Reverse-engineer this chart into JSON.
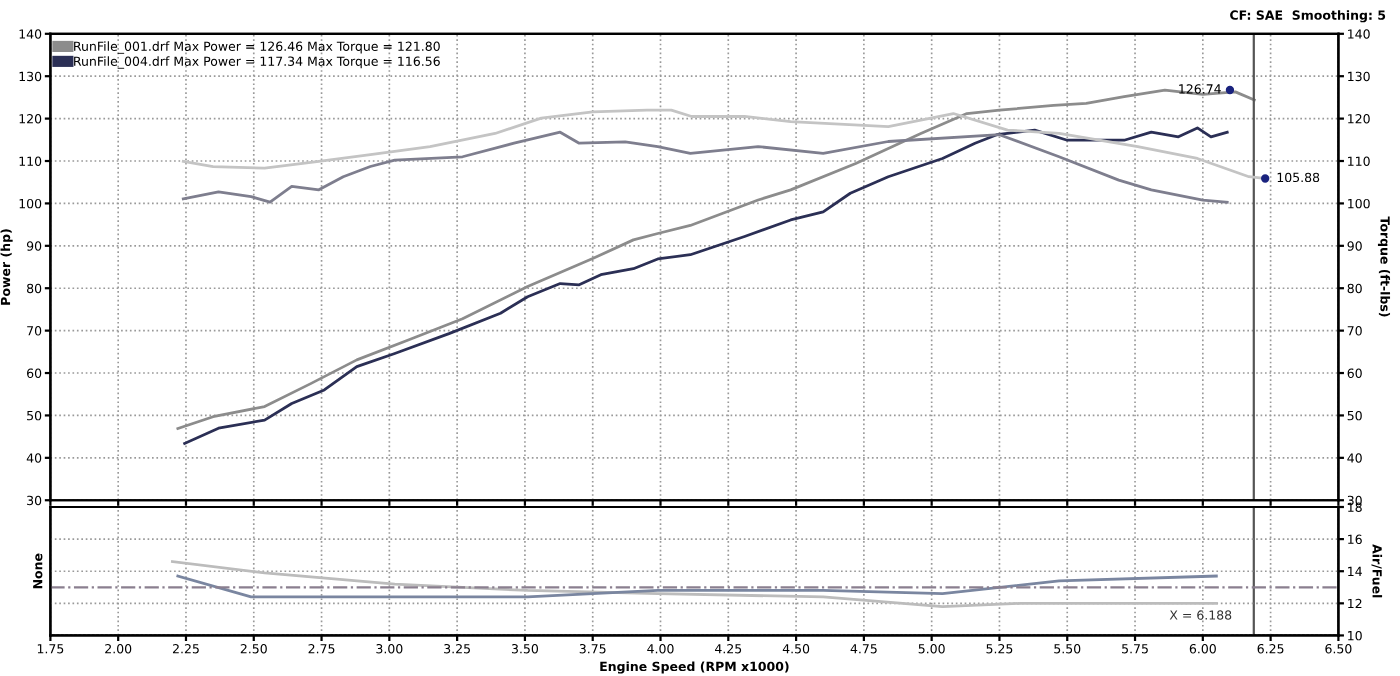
{
  "chart_data": [
    {
      "type": "line",
      "xlabel": null,
      "ylabel": "Power (hp)",
      "y2label": "Torque (ft-lbs)",
      "annotations": [
        "CF: SAE  Smoothing: 5",
        {
          "text": "126.74",
          "x": 6.1,
          "y": 126.74
        },
        {
          "text": "105.88",
          "x": 6.23,
          "y": 105.88
        }
      ],
      "xlim": [
        1.75,
        6.5
      ],
      "xticks": [
        1.75,
        2.0,
        2.25,
        2.5,
        2.75,
        3.0,
        3.25,
        3.5,
        3.75,
        4.0,
        4.25,
        4.5,
        4.75,
        5.0,
        5.25,
        5.5,
        5.75,
        6.0,
        6.25,
        6.5
      ],
      "ylim": [
        30,
        140
      ],
      "yticks": [
        30,
        40,
        50,
        60,
        70,
        80,
        90,
        100,
        110,
        120,
        130,
        140
      ],
      "y2lim": [
        30,
        140
      ],
      "y2ticks": [
        30,
        40,
        50,
        60,
        70,
        80,
        90,
        100,
        110,
        120,
        130,
        140
      ],
      "tick_labels": "y",
      "grid": true,
      "legend": "top left",
      "line_style": "solid",
      "ref_lines": [
        {
          "axis": "x",
          "value": 6.188,
          "color": "#555555"
        }
      ],
      "series": [
        {
          "name": "RunFile_001.drf Max Power = 126.46 Max Torque = 121.80",
          "color": "#8c8c8c",
          "x": [
            2.22,
            2.35,
            2.54,
            2.71,
            2.88,
            3.07,
            3.27,
            3.51,
            3.75,
            3.9,
            3.99,
            4.11,
            4.36,
            4.48,
            4.72,
            4.96,
            5.13,
            5.25,
            5.45,
            5.57,
            5.71,
            5.86,
            6.0,
            6.12,
            6.19
          ],
          "values": [
            46.9,
            49.7,
            52.1,
            57.5,
            63.1,
            67.8,
            72.8,
            80.4,
            87.0,
            91.4,
            92.9,
            94.8,
            100.8,
            103.2,
            109.4,
            116.5,
            121.2,
            122.0,
            123.1,
            123.6,
            125.2,
            126.7,
            125.7,
            126.3,
            124.4
          ]
        },
        {
          "name": "RunFile_004.drf Max Power = 117.34 Max Torque = 116.56",
          "color": "#2b2f55",
          "x": [
            2.245,
            2.37,
            2.54,
            2.64,
            2.76,
            2.88,
            3.02,
            3.22,
            3.41,
            3.51,
            3.63,
            3.7,
            3.78,
            3.9,
            3.99,
            4.11,
            4.31,
            4.48,
            4.6,
            4.7,
            4.84,
            5.04,
            5.16,
            5.24,
            5.38,
            5.5,
            5.71,
            5.81,
            5.91,
            5.98,
            6.03,
            6.09
          ],
          "values": [
            43.4,
            47.0,
            48.9,
            52.8,
            56.0,
            61.5,
            64.6,
            69.3,
            74.1,
            78.0,
            81.1,
            80.8,
            83.2,
            84.6,
            86.9,
            87.9,
            92.2,
            96.1,
            98.0,
            102.4,
            106.3,
            110.6,
            114.2,
            116.2,
            117.3,
            114.9,
            114.9,
            116.8,
            115.7,
            117.8,
            115.7,
            116.8
          ]
        },
        {
          "color": "#c4c4c4",
          "axis": "y2",
          "x": [
            2.24,
            2.35,
            2.54,
            2.74,
            2.93,
            3.15,
            3.39,
            3.56,
            3.75,
            3.95,
            4.04,
            4.115,
            4.31,
            4.48,
            4.84,
            5.08,
            5.28,
            5.47,
            5.76,
            5.98,
            6.17,
            6.23
          ],
          "values": [
            109.9,
            108.7,
            108.3,
            109.9,
            111.5,
            113.4,
            116.5,
            120.1,
            121.6,
            122.0,
            122.0,
            120.5,
            120.5,
            119.3,
            118.1,
            121.2,
            117.3,
            116.5,
            113.4,
            110.6,
            106.3,
            105.9
          ]
        },
        {
          "color": "#7e7e8e",
          "axis": "y2",
          "x": [
            2.24,
            2.37,
            2.49,
            2.56,
            2.64,
            2.74,
            2.83,
            2.93,
            3.02,
            3.27,
            3.46,
            3.63,
            3.7,
            3.87,
            3.99,
            4.11,
            4.36,
            4.6,
            4.84,
            5.25,
            5.47,
            5.69,
            5.81,
            6.0,
            6.09
          ],
          "values": [
            101.1,
            102.7,
            101.6,
            100.3,
            104.0,
            103.2,
            106.3,
            108.7,
            110.2,
            111.0,
            114.2,
            116.8,
            114.2,
            114.5,
            113.4,
            111.8,
            113.4,
            111.8,
            114.6,
            116.2,
            111.0,
            105.5,
            103.2,
            100.8,
            100.3
          ]
        }
      ]
    },
    {
      "type": "line",
      "xlabel": "Engine Speed (RPM x1000)",
      "ylabel": "None",
      "y2label": "Air/Fuel",
      "xlim": [
        1.75,
        6.5
      ],
      "xticks": [
        {
          "value": 1.75,
          "label": "1.75"
        },
        {
          "value": 2.0,
          "label": "2.00"
        },
        {
          "value": 2.25,
          "label": "2.25"
        },
        {
          "value": 2.5,
          "label": "2.50"
        },
        {
          "value": 2.75,
          "label": "2.75"
        },
        {
          "value": 3.0,
          "label": "3.00"
        },
        {
          "value": 3.25,
          "label": "3.25"
        },
        {
          "value": 3.5,
          "label": "3.50"
        },
        {
          "value": 3.75,
          "label": "3.75"
        },
        {
          "value": 4.0,
          "label": "4.00"
        },
        {
          "value": 4.25,
          "label": "4.25"
        },
        {
          "value": 4.5,
          "label": "4.50"
        },
        {
          "value": 4.75,
          "label": "4.75"
        },
        {
          "value": 5.0,
          "label": "5.00"
        },
        {
          "value": 5.25,
          "label": "5.25"
        },
        {
          "value": 5.5,
          "label": "5.50"
        },
        {
          "value": 5.75,
          "label": "5.75"
        },
        {
          "value": 6.0,
          "label": "6.00"
        },
        {
          "value": 6.25,
          "label": "6.25"
        },
        {
          "value": 6.5,
          "label": "6.50"
        }
      ],
      "y2lim": [
        10,
        18
      ],
      "y2ticks": [
        10,
        12,
        14,
        16,
        18
      ],
      "grid": true,
      "line_style": "solid",
      "ref_lines": [
        {
          "axis": "y2",
          "value": 13,
          "color": "#8a7f8f",
          "line_style": "dashdot"
        },
        {
          "axis": "x",
          "value": 6.188,
          "label": "X = 6.188",
          "color": "#555555"
        }
      ],
      "series": [
        {
          "color": "#bcbcbc",
          "axis": "y2",
          "x": [
            2.2,
            2.54,
            3.02,
            3.51,
            3.99,
            4.6,
            5.04,
            5.33,
            6.05
          ],
          "values": [
            14.6,
            13.9,
            13.2,
            12.8,
            12.6,
            12.4,
            11.8,
            12.0,
            12.0
          ]
        },
        {
          "color": "#7a86a0",
          "axis": "y2",
          "x": [
            2.22,
            2.49,
            3.0,
            3.51,
            3.99,
            4.6,
            5.04,
            5.47,
            6.05
          ],
          "values": [
            13.7,
            12.4,
            12.4,
            12.4,
            12.8,
            12.8,
            12.6,
            13.4,
            13.7
          ]
        }
      ]
    }
  ]
}
